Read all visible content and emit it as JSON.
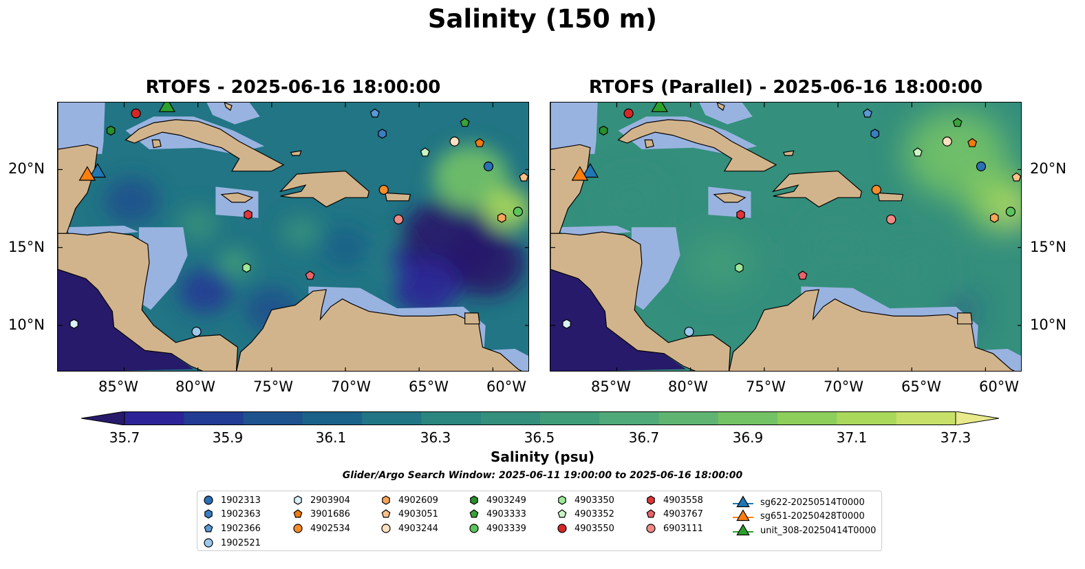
{
  "title": "Salinity (150 m)",
  "panels": [
    {
      "title": "RTOFS - 2025-06-16 18:00:00"
    },
    {
      "title": "RTOFS (Parallel) - 2025-06-16 18:00:00"
    }
  ],
  "axes": {
    "lat_ticks": [
      "20°N",
      "15°N",
      "10°N"
    ],
    "lon_ticks": [
      "85°W",
      "80°W",
      "75°W",
      "70°W",
      "65°W",
      "60°W"
    ]
  },
  "colorbar": {
    "label": "Salinity (psu)",
    "ticks": [
      "35.7",
      "35.9",
      "36.1",
      "36.3",
      "36.5",
      "36.7",
      "36.9",
      "37.1",
      "37.3"
    ],
    "range": [
      35.6,
      37.4
    ],
    "colors": [
      "#271a6a",
      "#2b2396",
      "#223b93",
      "#1d528d",
      "#1b6288",
      "#217584",
      "#2a867f",
      "#348f7c",
      "#419c79",
      "#50a978",
      "#5fb472",
      "#74c266",
      "#8ecf5c",
      "#aad85a",
      "#c7e06a",
      "#e8ea8c"
    ]
  },
  "colors": {
    "land": "#d2b48c",
    "shelf": "#99b3e0",
    "deep_pacific": "#271a6a"
  },
  "search_window": "Glider/Argo Search Window: 2025-06-11 19:00:00 to 2025-06-16 18:00:00",
  "legend": [
    {
      "label": "1902313",
      "marker": "circle",
      "color": "#2b6fb4"
    },
    {
      "label": "1902363",
      "marker": "hexagon",
      "color": "#3a7fc0"
    },
    {
      "label": "1902366",
      "marker": "pentagon",
      "color": "#5a98d6"
    },
    {
      "label": "1902521",
      "marker": "circle",
      "color": "#9cc8ec"
    },
    {
      "label": "2903904",
      "marker": "hexagon",
      "color": "#d9f2fb"
    },
    {
      "label": "3901686",
      "marker": "pentagon",
      "color": "#f07a10"
    },
    {
      "label": "4902534",
      "marker": "circle",
      "color": "#f58b2a"
    },
    {
      "label": "4902609",
      "marker": "hexagon",
      "color": "#f7a55a"
    },
    {
      "label": "4903051",
      "marker": "pentagon",
      "color": "#fbc18a"
    },
    {
      "label": "4903244",
      "marker": "circle",
      "color": "#fde0c0"
    },
    {
      "label": "4903249",
      "marker": "hexagon",
      "color": "#2a8f2a"
    },
    {
      "label": "4903333",
      "marker": "pentagon",
      "color": "#3aa23a"
    },
    {
      "label": "4903339",
      "marker": "circle",
      "color": "#5cc45c"
    },
    {
      "label": "4903350",
      "marker": "hexagon",
      "color": "#9de89a"
    },
    {
      "label": "4903352",
      "marker": "pentagon",
      "color": "#c9f5c2"
    },
    {
      "label": "4903550",
      "marker": "circle",
      "color": "#d62728"
    },
    {
      "label": "4903558",
      "marker": "hexagon",
      "color": "#e0353a"
    },
    {
      "label": "4903767",
      "marker": "pentagon",
      "color": "#e8646a"
    },
    {
      "label": "6903111",
      "marker": "circle",
      "color": "#f08a84"
    },
    {
      "label": "sg622-20250514T0000",
      "marker": "triangle",
      "color": "#1f77b4"
    },
    {
      "label": "sg651-20250428T0000",
      "marker": "triangle",
      "color": "#ff7f0e"
    },
    {
      "label": "unit_308-20250414T0000",
      "marker": "triangle",
      "color": "#2ca02c"
    }
  ],
  "observations": [
    {
      "id": "1902313",
      "lon": -60.3,
      "lat": 20.2
    },
    {
      "id": "1902363",
      "lon": -67.5,
      "lat": 22.3
    },
    {
      "id": "1902366",
      "lon": -68.0,
      "lat": 23.6
    },
    {
      "id": "1902521",
      "lon": -80.1,
      "lat": 9.6
    },
    {
      "id": "2903904",
      "lon": -88.4,
      "lat": 10.1
    },
    {
      "id": "3901686",
      "lon": -60.9,
      "lat": 21.7
    },
    {
      "id": "4902534",
      "lon": -67.4,
      "lat": 18.7
    },
    {
      "id": "4902609",
      "lon": -59.4,
      "lat": 16.9
    },
    {
      "id": "4903051",
      "lon": -57.9,
      "lat": 19.5
    },
    {
      "id": "4903244",
      "lon": -62.6,
      "lat": 21.8
    },
    {
      "id": "4903249",
      "lon": -85.9,
      "lat": 22.5
    },
    {
      "id": "4903333",
      "lon": -61.9,
      "lat": 23.0
    },
    {
      "id": "4903339",
      "lon": -58.3,
      "lat": 17.3
    },
    {
      "id": "4903350",
      "lon": -76.7,
      "lat": 13.7
    },
    {
      "id": "4903352",
      "lon": -64.6,
      "lat": 21.1
    },
    {
      "id": "4903550",
      "lon": -84.2,
      "lat": 23.6
    },
    {
      "id": "4903558",
      "lon": -76.6,
      "lat": 17.1
    },
    {
      "id": "4903767",
      "lon": -72.4,
      "lat": 13.2
    },
    {
      "id": "6903111",
      "lon": -66.4,
      "lat": 16.8
    },
    {
      "id": "sg622-20250514T0000",
      "lon": -86.8,
      "lat": 19.8
    },
    {
      "id": "sg651-20250428T0000",
      "lon": -87.5,
      "lat": 19.6
    },
    {
      "id": "unit_308-20250414T0000",
      "lon": -82.1,
      "lat": 24.0
    }
  ]
}
